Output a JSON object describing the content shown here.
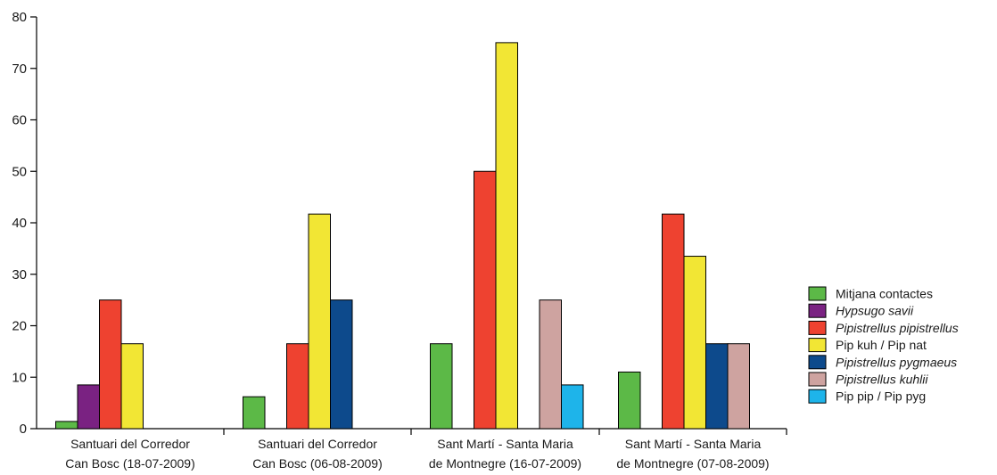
{
  "chart_data": {
    "type": "bar",
    "ylim": [
      0,
      80
    ],
    "yticks": [
      "0",
      "10",
      "20",
      "30",
      "40",
      "50",
      "60",
      "70",
      "80"
    ],
    "categories": [
      [
        "Santuari del Corredor",
        "Can Bosc (18-07-2009)"
      ],
      [
        "Santuari del Corredor",
        "Can Bosc (06-08-2009)"
      ],
      [
        "Sant Martí - Santa Maria",
        "de Montnegre (16-07-2009)"
      ],
      [
        "Sant Martí - Santa Maria",
        "de Montnegre (07-08-2009)"
      ]
    ],
    "legend_position": "right",
    "series": [
      {
        "name": "Mitjana contactes",
        "color": "#5cb947",
        "italic": false,
        "values": [
          1.4,
          6.2,
          16.5,
          11
        ]
      },
      {
        "name": "Hypsugo savii",
        "color": "#7a2282",
        "italic": true,
        "values": [
          8.5,
          0,
          0,
          0
        ]
      },
      {
        "name": "Pipistrellus pipistrellus",
        "color": "#ee4230",
        "italic": true,
        "values": [
          25,
          16.5,
          50,
          41.7
        ]
      },
      {
        "name": "Pip kuh / Pip nat",
        "color": "#f2e634",
        "italic": false,
        "values": [
          16.5,
          41.7,
          75,
          33.5
        ]
      },
      {
        "name": "Pipistrellus pygmaeus",
        "color": "#0d4a8c",
        "italic": true,
        "values": [
          0,
          25,
          0,
          16.5
        ]
      },
      {
        "name": "Pipistrellus kuhlii",
        "color": "#cea3a0",
        "italic": true,
        "values": [
          0,
          0,
          25,
          16.5
        ]
      },
      {
        "name": "Pip pip / Pip pyg",
        "color": "#1eb4ea",
        "italic": false,
        "values": [
          0,
          0,
          8.5,
          0
        ]
      }
    ]
  }
}
